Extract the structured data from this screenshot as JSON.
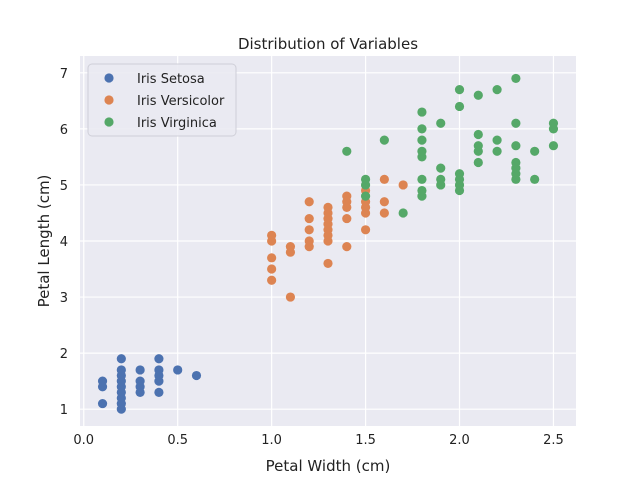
{
  "chart_data": {
    "type": "scatter",
    "title": "Distribution of Variables",
    "xlabel": "Petal Width (cm)",
    "ylabel": "Petal Length (cm)",
    "xlim": [
      -0.02,
      2.62
    ],
    "ylim": [
      0.7,
      7.3
    ],
    "xticks": [
      0.0,
      0.5,
      1.0,
      1.5,
      2.0,
      2.5
    ],
    "xtick_labels": [
      "0.0",
      "0.5",
      "1.0",
      "1.5",
      "2.0",
      "2.5"
    ],
    "yticks": [
      1,
      2,
      3,
      4,
      5,
      6,
      7
    ],
    "ytick_labels": [
      "1",
      "2",
      "3",
      "4",
      "5",
      "6",
      "7"
    ],
    "grid": true,
    "legend_position": "top-left",
    "background": "#eaeaf2",
    "series": [
      {
        "name": "Iris Setosa",
        "color": "#4c72b0",
        "points": [
          [
            0.2,
            1.4
          ],
          [
            0.2,
            1.3
          ],
          [
            0.2,
            1.5
          ],
          [
            0.2,
            1.6
          ],
          [
            0.2,
            1.2
          ],
          [
            0.2,
            1.1
          ],
          [
            0.2,
            1.0
          ],
          [
            0.2,
            1.7
          ],
          [
            0.2,
            1.9
          ],
          [
            0.1,
            1.5
          ],
          [
            0.1,
            1.4
          ],
          [
            0.1,
            1.1
          ],
          [
            0.3,
            1.3
          ],
          [
            0.3,
            1.4
          ],
          [
            0.3,
            1.5
          ],
          [
            0.3,
            1.7
          ],
          [
            0.4,
            1.3
          ],
          [
            0.4,
            1.5
          ],
          [
            0.4,
            1.6
          ],
          [
            0.4,
            1.7
          ],
          [
            0.4,
            1.9
          ],
          [
            0.5,
            1.7
          ],
          [
            0.6,
            1.6
          ]
        ]
      },
      {
        "name": "Iris Versicolor",
        "color": "#dd8452",
        "points": [
          [
            1.0,
            3.3
          ],
          [
            1.0,
            3.5
          ],
          [
            1.0,
            3.7
          ],
          [
            1.0,
            4.0
          ],
          [
            1.0,
            4.1
          ],
          [
            1.1,
            3.0
          ],
          [
            1.1,
            3.8
          ],
          [
            1.1,
            3.9
          ],
          [
            1.2,
            3.9
          ],
          [
            1.2,
            4.0
          ],
          [
            1.2,
            4.2
          ],
          [
            1.2,
            4.4
          ],
          [
            1.2,
            4.7
          ],
          [
            1.3,
            3.6
          ],
          [
            1.3,
            4.0
          ],
          [
            1.3,
            4.1
          ],
          [
            1.3,
            4.2
          ],
          [
            1.3,
            4.3
          ],
          [
            1.3,
            4.4
          ],
          [
            1.3,
            4.5
          ],
          [
            1.3,
            4.6
          ],
          [
            1.4,
            3.9
          ],
          [
            1.4,
            4.4
          ],
          [
            1.4,
            4.6
          ],
          [
            1.4,
            4.7
          ],
          [
            1.4,
            4.8
          ],
          [
            1.5,
            4.2
          ],
          [
            1.5,
            4.5
          ],
          [
            1.5,
            4.6
          ],
          [
            1.5,
            4.7
          ],
          [
            1.5,
            4.9
          ],
          [
            1.6,
            4.5
          ],
          [
            1.6,
            4.7
          ],
          [
            1.6,
            5.1
          ],
          [
            1.7,
            5.0
          ]
        ]
      },
      {
        "name": "Iris Virginica",
        "color": "#55a868",
        "points": [
          [
            1.4,
            5.6
          ],
          [
            1.5,
            4.8
          ],
          [
            1.5,
            5.0
          ],
          [
            1.5,
            5.1
          ],
          [
            1.6,
            5.8
          ],
          [
            1.7,
            4.5
          ],
          [
            1.8,
            4.8
          ],
          [
            1.8,
            4.9
          ],
          [
            1.8,
            5.1
          ],
          [
            1.8,
            5.5
          ],
          [
            1.8,
            5.6
          ],
          [
            1.8,
            5.8
          ],
          [
            1.8,
            6.0
          ],
          [
            1.8,
            6.3
          ],
          [
            1.9,
            5.0
          ],
          [
            1.9,
            5.1
          ],
          [
            1.9,
            5.3
          ],
          [
            1.9,
            6.1
          ],
          [
            2.0,
            4.9
          ],
          [
            2.0,
            5.0
          ],
          [
            2.0,
            5.1
          ],
          [
            2.0,
            5.2
          ],
          [
            2.0,
            6.4
          ],
          [
            2.0,
            6.7
          ],
          [
            2.1,
            5.4
          ],
          [
            2.1,
            5.6
          ],
          [
            2.1,
            5.7
          ],
          [
            2.1,
            5.9
          ],
          [
            2.1,
            6.6
          ],
          [
            2.2,
            5.6
          ],
          [
            2.2,
            5.8
          ],
          [
            2.2,
            6.7
          ],
          [
            2.3,
            5.1
          ],
          [
            2.3,
            5.2
          ],
          [
            2.3,
            5.3
          ],
          [
            2.3,
            5.4
          ],
          [
            2.3,
            5.7
          ],
          [
            2.3,
            6.1
          ],
          [
            2.3,
            6.9
          ],
          [
            2.4,
            5.1
          ],
          [
            2.4,
            5.6
          ],
          [
            2.5,
            5.7
          ],
          [
            2.5,
            6.0
          ],
          [
            2.5,
            6.1
          ]
        ]
      }
    ]
  }
}
